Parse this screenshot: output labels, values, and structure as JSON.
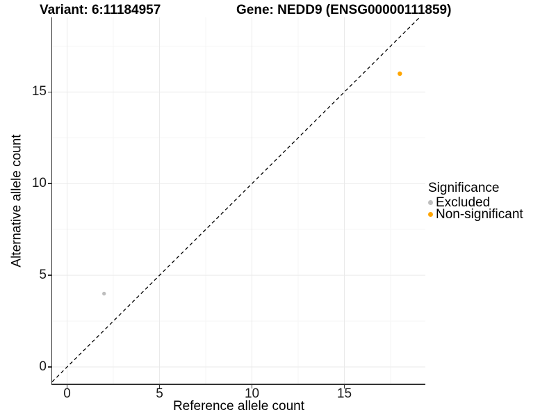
{
  "chart_data": {
    "type": "scatter",
    "title_left": "Variant: 6:11184957",
    "title_right": "Gene: NEDD9 (ENSG00000111859)",
    "xlabel": "Reference allele count",
    "ylabel": "Alternative allele count",
    "xlim": [
      -0.81,
      19.38
    ],
    "ylim": [
      -0.91,
      19.07
    ],
    "xticks": [
      0,
      5,
      10,
      15
    ],
    "yticks": [
      0,
      5,
      10,
      15
    ],
    "minor_xticks": [
      2.5,
      7.5,
      12.5,
      17.5
    ],
    "minor_yticks": [
      2.5,
      7.5,
      12.5,
      17.5
    ],
    "grid": "major and minor gridlines, light gray on white",
    "reference_line": {
      "type": "identity y=x",
      "style": "dashed",
      "color": "#000000"
    },
    "legend": {
      "title": "Significance",
      "position": "right"
    },
    "series": [
      {
        "name": "Excluded",
        "color": "#BEBEBE",
        "radius": 2.7,
        "points": [
          [
            2,
            4
          ]
        ]
      },
      {
        "name": "Non-significant",
        "color": "#FFA500",
        "radius": 3.2,
        "points": [
          [
            18,
            16
          ]
        ]
      }
    ]
  }
}
